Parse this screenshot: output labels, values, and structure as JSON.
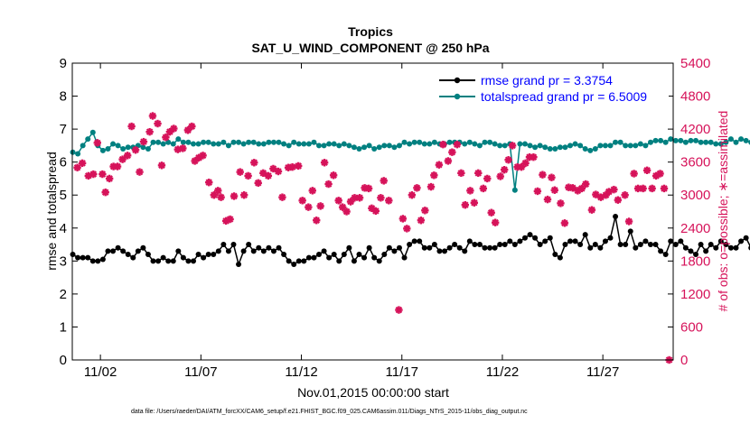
{
  "chart_data": {
    "type": "line",
    "title": "Tropics",
    "subtitle": "SAT_U_WIND_COMPONENT @ 250 hPa",
    "xlabel": "Nov.01,2015 00:00:00 start",
    "ylabel_left": "rmse and totalspread",
    "ylabel_right": "# of obs: o=possible; ∗=assimilated",
    "footnote": "data file: /Users/raeder/DAI/ATM_forcXX/CAM6_setup/f.e21.FHIST_BGC.f09_025.CAM6assim.011/Diags_NTrS_2015-11/obs_diag_output.nc",
    "xlim": [
      0.6,
      30.5
    ],
    "ylim_left": [
      0,
      9
    ],
    "ylim_right": [
      0,
      5400
    ],
    "yticks_left": [
      0,
      1,
      2,
      3,
      4,
      5,
      6,
      7,
      8,
      9
    ],
    "yticks_right": [
      0,
      600,
      1200,
      1800,
      2400,
      3000,
      3600,
      4200,
      4800,
      5400
    ],
    "xticks": [
      {
        "x": 2,
        "label": "11/02"
      },
      {
        "x": 7,
        "label": "11/07"
      },
      {
        "x": 12,
        "label": "11/12"
      },
      {
        "x": 17,
        "label": "11/17"
      },
      {
        "x": 22,
        "label": "11/22"
      },
      {
        "x": 27,
        "label": "11/27"
      }
    ],
    "colors": {
      "rmse": "#000000",
      "spread": "#008080",
      "obs": "#d6135a",
      "legend_text": "#0000ff",
      "right_axis": "#d6135a"
    },
    "legend": [
      {
        "name": "rmse grand pr = 3.3754",
        "series": "rmse"
      },
      {
        "name": "totalspread grand pr = 6.5009",
        "series": "spread"
      }
    ],
    "x_start": 0.625,
    "x_step": 0.25,
    "series": [
      {
        "name": "rmse",
        "values": [
          3.2,
          3.1,
          3.1,
          3.1,
          3.0,
          3.0,
          3.05,
          3.3,
          3.3,
          3.4,
          3.3,
          3.2,
          3.1,
          3.3,
          3.4,
          3.2,
          3.0,
          3.0,
          3.1,
          3.0,
          3.0,
          3.3,
          3.1,
          3.0,
          3.0,
          3.2,
          3.1,
          3.2,
          3.2,
          3.3,
          3.5,
          3.3,
          3.5,
          2.9,
          3.3,
          3.5,
          3.3,
          3.4,
          3.3,
          3.4,
          3.3,
          3.4,
          3.2,
          3.0,
          2.9,
          3.0,
          3.0,
          3.1,
          3.1,
          3.2,
          3.3,
          3.1,
          3.2,
          3.0,
          3.2,
          3.4,
          3.0,
          3.2,
          3.1,
          3.4,
          3.1,
          3.0,
          3.2,
          3.4,
          3.3,
          3.4,
          3.1,
          3.5,
          3.6,
          3.6,
          3.4,
          3.4,
          3.5,
          3.3,
          3.3,
          3.4,
          3.5,
          3.4,
          3.3,
          3.6,
          3.5,
          3.5,
          3.4,
          3.4,
          3.4,
          3.5,
          3.5,
          3.6,
          3.5,
          3.6,
          3.7,
          3.8,
          3.7,
          3.5,
          3.6,
          3.7,
          3.2,
          3.1,
          3.5,
          3.6,
          3.6,
          3.5,
          3.8,
          3.4,
          3.5,
          3.4,
          3.6,
          3.7,
          4.35,
          3.5,
          3.5,
          3.9,
          3.4,
          3.5,
          3.6,
          3.5,
          3.5,
          3.3,
          3.2,
          3.6,
          3.5,
          3.6,
          3.4,
          3.3,
          3.2,
          3.5,
          3.3,
          3.5,
          3.4,
          3.6,
          3.5,
          3.4,
          3.4,
          3.6,
          3.7,
          3.4,
          3.9,
          3.5,
          3.7,
          3.6,
          3.6,
          3.5,
          3.7,
          3.8,
          3.6,
          3.7,
          3.5,
          3.7,
          3.9,
          4.1,
          3.7,
          3.5,
          3.1,
          3.2,
          3.7,
          3.6,
          3.7,
          3.8,
          3.5,
          3.3,
          3.2,
          3.3,
          3.4,
          3.5
        ],
        "anomaly": {
          "x": 16.875,
          "value": 2.8
        }
      },
      {
        "name": "totalspread",
        "values": [
          6.3,
          6.25,
          6.5,
          6.7,
          6.9,
          6.5,
          6.35,
          6.4,
          6.55,
          6.5,
          6.4,
          6.45,
          6.45,
          6.5,
          6.45,
          6.4,
          6.6,
          6.6,
          6.55,
          6.6,
          6.55,
          6.7,
          6.6,
          6.6,
          6.55,
          6.55,
          6.6,
          6.6,
          6.55,
          6.55,
          6.6,
          6.5,
          6.6,
          6.6,
          6.55,
          6.6,
          6.6,
          6.55,
          6.55,
          6.6,
          6.6,
          6.6,
          6.55,
          6.5,
          6.6,
          6.55,
          6.55,
          6.55,
          6.6,
          6.5,
          6.5,
          6.55,
          6.55,
          6.5,
          6.55,
          6.5,
          6.45,
          6.4,
          6.45,
          6.5,
          6.4,
          6.45,
          6.5,
          6.5,
          6.45,
          6.5,
          6.6,
          6.55,
          6.6,
          6.6,
          6.55,
          6.55,
          6.6,
          6.55,
          6.55,
          6.6,
          6.6,
          6.6,
          6.55,
          6.6,
          6.55,
          6.5,
          6.6,
          6.6,
          6.55,
          6.5,
          6.5,
          6.55,
          5.15,
          6.55,
          6.55,
          6.5,
          6.45,
          6.5,
          6.45,
          6.4,
          6.4,
          6.45,
          6.45,
          6.5,
          6.55,
          6.5,
          6.4,
          6.35,
          6.4,
          6.5,
          6.5,
          6.5,
          6.6,
          6.6,
          6.5,
          6.5,
          6.5,
          6.55,
          6.5,
          6.6,
          6.65,
          6.65,
          6.6,
          6.7,
          6.65,
          6.65,
          6.6,
          6.65,
          6.65,
          6.6,
          6.6,
          6.6,
          6.55,
          6.55,
          6.6,
          6.7,
          6.6,
          6.7,
          6.65,
          6.6,
          6.6,
          6.65,
          6.6,
          6.6,
          6.55,
          6.6,
          6.6,
          6.55,
          6.55,
          6.6,
          6.65,
          6.6,
          6.55,
          6.55,
          6.55,
          6.5,
          6.5,
          6.45,
          6.5,
          6.5,
          6.5,
          6.45,
          6.55,
          6.55,
          6.6,
          6.65
        ]
      },
      {
        "name": "obs_assimilated",
        "axis": "right",
        "points": [
          [
            0.85,
            3500
          ],
          [
            1.1,
            3580
          ],
          [
            1.4,
            3350
          ],
          [
            1.65,
            3380
          ],
          [
            1.85,
            3950
          ],
          [
            2.1,
            3380
          ],
          [
            2.25,
            3050
          ],
          [
            2.45,
            3300
          ],
          [
            2.65,
            3520
          ],
          [
            2.85,
            3520
          ],
          [
            3.1,
            3650
          ],
          [
            3.35,
            3720
          ],
          [
            3.55,
            4250
          ],
          [
            3.75,
            3820
          ],
          [
            3.95,
            3420
          ],
          [
            4.15,
            3970
          ],
          [
            4.45,
            4150
          ],
          [
            4.6,
            4440
          ],
          [
            4.85,
            4300
          ],
          [
            5.05,
            3540
          ],
          [
            5.25,
            4050
          ],
          [
            5.45,
            4150
          ],
          [
            5.65,
            4210
          ],
          [
            5.85,
            3830
          ],
          [
            6.1,
            3850
          ],
          [
            6.35,
            4180
          ],
          [
            6.55,
            4250
          ],
          [
            6.7,
            3620
          ],
          [
            6.9,
            3680
          ],
          [
            7.1,
            3720
          ],
          [
            7.4,
            3230
          ],
          [
            7.65,
            3000
          ],
          [
            7.85,
            3080
          ],
          [
            8.0,
            2960
          ],
          [
            8.25,
            2530
          ],
          [
            8.45,
            2560
          ],
          [
            8.65,
            2980
          ],
          [
            8.95,
            3420
          ],
          [
            9.15,
            3000
          ],
          [
            9.35,
            3350
          ],
          [
            9.65,
            3590
          ],
          [
            9.85,
            3220
          ],
          [
            10.1,
            3400
          ],
          [
            10.35,
            3350
          ],
          [
            10.6,
            3480
          ],
          [
            10.85,
            3430
          ],
          [
            11.05,
            2960
          ],
          [
            11.35,
            3500
          ],
          [
            11.55,
            3510
          ],
          [
            11.85,
            3530
          ],
          [
            12.05,
            2900
          ],
          [
            12.35,
            2780
          ],
          [
            12.55,
            3080
          ],
          [
            12.75,
            2540
          ],
          [
            12.95,
            2800
          ],
          [
            13.15,
            3590
          ],
          [
            13.35,
            3200
          ],
          [
            13.6,
            3360
          ],
          [
            13.85,
            2900
          ],
          [
            14.05,
            2780
          ],
          [
            14.25,
            2700
          ],
          [
            14.45,
            2880
          ],
          [
            14.65,
            2950
          ],
          [
            14.9,
            2950
          ],
          [
            15.15,
            3130
          ],
          [
            15.35,
            3120
          ],
          [
            15.5,
            2760
          ],
          [
            15.7,
            2710
          ],
          [
            15.95,
            2950
          ],
          [
            16.1,
            3260
          ],
          [
            16.35,
            2900
          ],
          [
            16.85,
            910
          ],
          [
            17.05,
            2570
          ],
          [
            17.25,
            2390
          ],
          [
            17.5,
            3000
          ],
          [
            17.75,
            3130
          ],
          [
            17.95,
            2540
          ],
          [
            18.15,
            2720
          ],
          [
            18.45,
            3150
          ],
          [
            18.6,
            3360
          ],
          [
            18.85,
            3550
          ],
          [
            19.05,
            3920
          ],
          [
            19.3,
            3620
          ],
          [
            19.5,
            3780
          ],
          [
            19.75,
            3920
          ],
          [
            19.95,
            3400
          ],
          [
            20.15,
            2820
          ],
          [
            20.4,
            3080
          ],
          [
            20.6,
            2860
          ],
          [
            20.8,
            3400
          ],
          [
            21.05,
            3120
          ],
          [
            21.25,
            3300
          ],
          [
            21.45,
            2680
          ],
          [
            21.65,
            2500
          ],
          [
            21.9,
            3340
          ],
          [
            22.1,
            3460
          ],
          [
            22.3,
            3640
          ],
          [
            22.5,
            3900
          ],
          [
            22.75,
            3510
          ],
          [
            22.95,
            3510
          ],
          [
            23.15,
            3580
          ],
          [
            23.35,
            3690
          ],
          [
            23.55,
            3690
          ],
          [
            23.75,
            3070
          ],
          [
            24.0,
            3370
          ],
          [
            24.25,
            2920
          ],
          [
            24.45,
            3320
          ],
          [
            24.6,
            3090
          ],
          [
            24.9,
            2850
          ],
          [
            25.1,
            2490
          ],
          [
            25.3,
            3140
          ],
          [
            25.5,
            3130
          ],
          [
            25.75,
            3080
          ],
          [
            25.95,
            3120
          ],
          [
            26.15,
            3200
          ],
          [
            26.45,
            2730
          ],
          [
            26.65,
            3010
          ],
          [
            26.9,
            2960
          ],
          [
            27.15,
            3000
          ],
          [
            27.3,
            3060
          ],
          [
            27.55,
            3100
          ],
          [
            27.75,
            2910
          ],
          [
            28.1,
            3000
          ],
          [
            28.3,
            2520
          ],
          [
            28.55,
            3390
          ],
          [
            28.75,
            3120
          ],
          [
            29.0,
            3120
          ],
          [
            29.2,
            3450
          ],
          [
            29.45,
            3120
          ],
          [
            29.65,
            3350
          ],
          [
            29.85,
            3390
          ],
          [
            30.05,
            3120
          ],
          [
            30.3,
            0
          ]
        ]
      }
    ]
  }
}
